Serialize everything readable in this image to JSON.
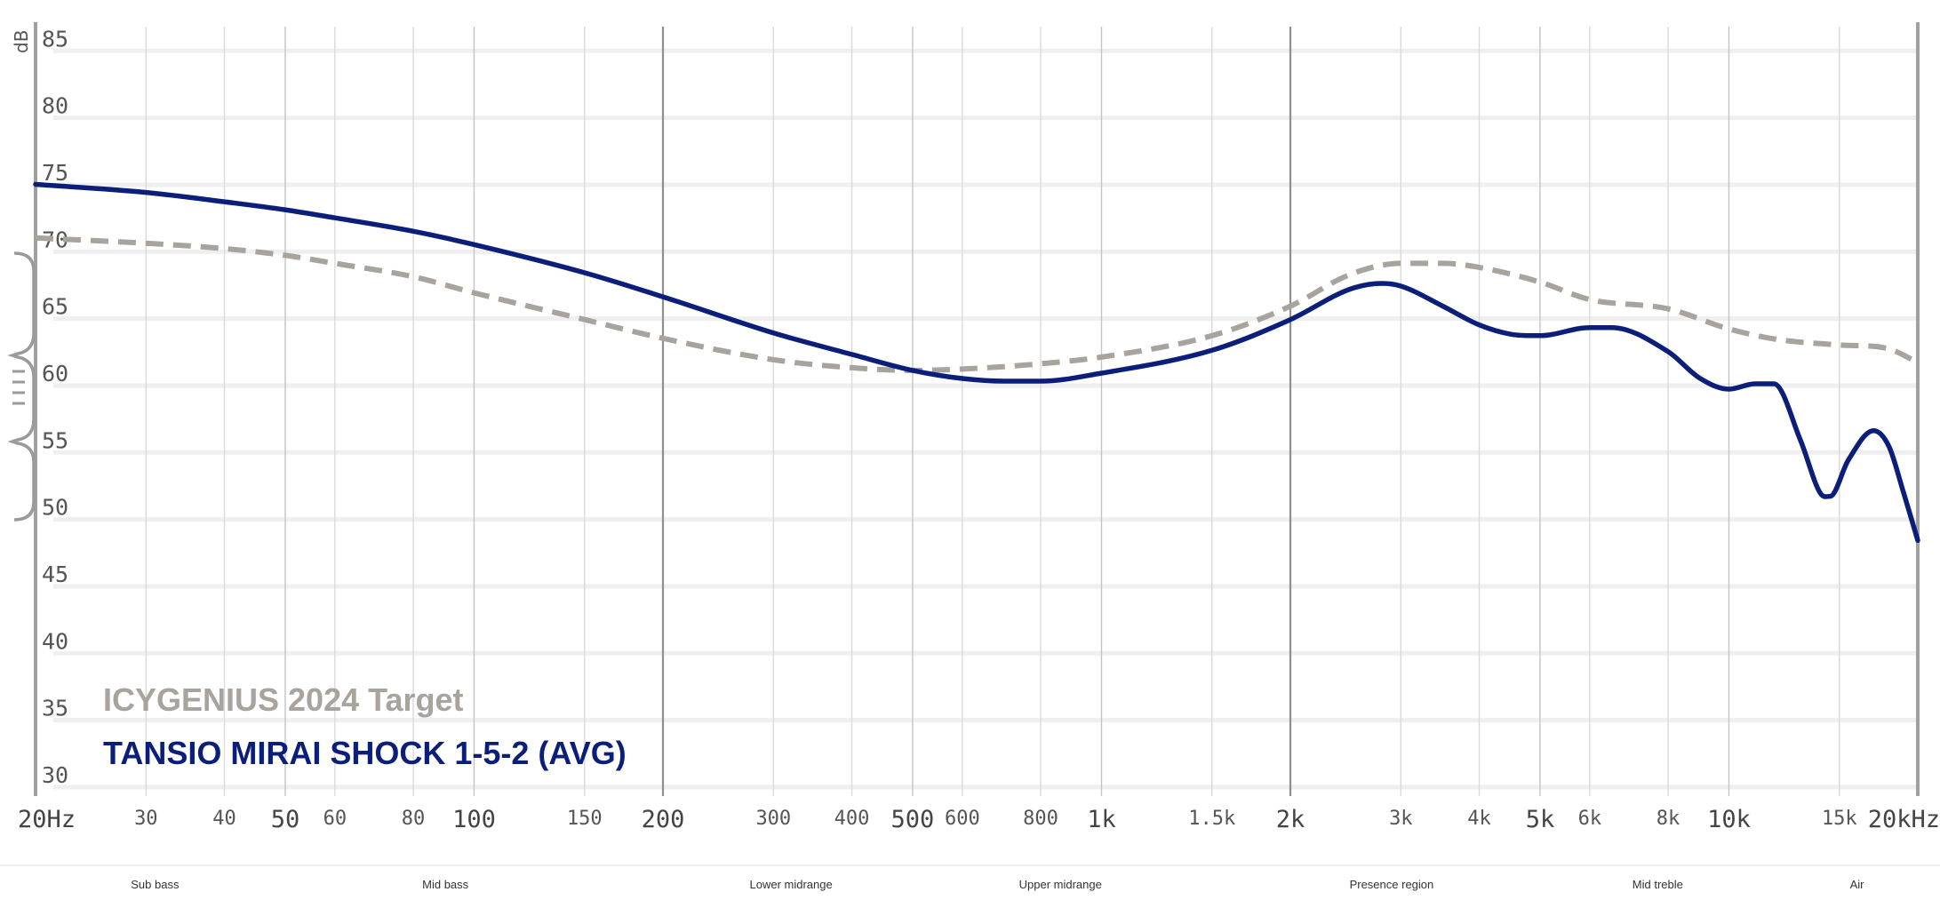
{
  "colors": {
    "phone": "#0b1f7a",
    "target": "#a8a39c",
    "grid_minor": "#dadada",
    "grid_major": "#9a9a9a",
    "axis": "#a0a0a0"
  },
  "chart_data": {
    "type": "line",
    "title": "",
    "ylabel": "dB",
    "xlabel": "",
    "x_scale": "log",
    "xlim": [
      20,
      20000
    ],
    "ylim": [
      28,
      87
    ],
    "grid": true,
    "legend_position": "bottom-left",
    "y_ticks": [
      "85",
      "80",
      "75",
      "70",
      "65",
      "60",
      "55",
      "50",
      "45",
      "40",
      "35",
      "30"
    ],
    "y_tick_values": [
      85,
      80,
      75,
      70,
      65,
      60,
      55,
      50,
      45,
      40,
      35,
      30
    ],
    "x_ticks": [
      {
        "f": 20,
        "label": "20Hz",
        "major": true
      },
      {
        "f": 30,
        "label": "30",
        "major": false
      },
      {
        "f": 40,
        "label": "40",
        "major": false
      },
      {
        "f": 50,
        "label": "50",
        "major": true
      },
      {
        "f": 60,
        "label": "60",
        "major": false
      },
      {
        "f": 80,
        "label": "80",
        "major": false
      },
      {
        "f": 100,
        "label": "100",
        "major": true
      },
      {
        "f": 150,
        "label": "150",
        "major": false
      },
      {
        "f": 200,
        "label": "200",
        "major": true
      },
      {
        "f": 300,
        "label": "300",
        "major": false
      },
      {
        "f": 400,
        "label": "400",
        "major": false
      },
      {
        "f": 500,
        "label": "500",
        "major": true
      },
      {
        "f": 600,
        "label": "600",
        "major": false
      },
      {
        "f": 800,
        "label": "800",
        "major": false
      },
      {
        "f": 1000,
        "label": "1k",
        "major": true
      },
      {
        "f": 1500,
        "label": "1.5k",
        "major": false
      },
      {
        "f": 2000,
        "label": "2k",
        "major": true
      },
      {
        "f": 3000,
        "label": "3k",
        "major": false
      },
      {
        "f": 4000,
        "label": "4k",
        "major": false
      },
      {
        "f": 5000,
        "label": "5k",
        "major": true
      },
      {
        "f": 6000,
        "label": "6k",
        "major": false
      },
      {
        "f": 8000,
        "label": "8k",
        "major": false
      },
      {
        "f": 10000,
        "label": "10k",
        "major": true
      },
      {
        "f": 15000,
        "label": "15k",
        "major": false
      },
      {
        "f": 20000,
        "label": "20kHz",
        "major": true
      }
    ],
    "dark_grid_freqs": [
      200,
      2000,
      20000
    ],
    "regions": [
      {
        "label": "Sub bass",
        "f": 31
      },
      {
        "label": "Mid bass",
        "f": 90
      },
      {
        "label": "Lower midrange",
        "f": 320
      },
      {
        "label": "Upper midrange",
        "f": 860
      },
      {
        "label": "Presence region",
        "f": 2900
      },
      {
        "label": "Mid treble",
        "f": 7700
      },
      {
        "label": "Air",
        "f": 16000
      }
    ],
    "series": [
      {
        "name": "ICYGENIUS 2024 Target",
        "style": "dashed",
        "x": [
          20,
          30,
          40,
          50,
          60,
          80,
          100,
          150,
          200,
          300,
          400,
          500,
          600,
          800,
          1000,
          1500,
          2000,
          2500,
          3000,
          3500,
          4000,
          5000,
          6000,
          8000,
          10000,
          12000,
          15000,
          18000,
          20000
        ],
        "values": [
          70.1,
          69.7,
          69.3,
          68.8,
          68.2,
          67.2,
          66.0,
          64.0,
          62.6,
          61.0,
          60.4,
          60.2,
          60.3,
          60.7,
          61.2,
          62.8,
          65.0,
          67.4,
          68.2,
          68.2,
          67.9,
          66.8,
          65.5,
          64.8,
          63.3,
          62.5,
          62.1,
          61.8,
          60.8
        ]
      },
      {
        "name": "TANSIO MIRAI SHOCK 1-5-2 (AVG)",
        "style": "solid",
        "x": [
          20,
          30,
          40,
          50,
          60,
          80,
          100,
          150,
          200,
          300,
          400,
          500,
          600,
          700,
          800,
          1000,
          1500,
          2000,
          2500,
          2800,
          3000,
          3500,
          4000,
          4500,
          5000,
          6000,
          6500,
          8000,
          9000,
          10000,
          11000,
          11800,
          13000,
          14000,
          14500,
          15500,
          17000,
          18000,
          19000,
          20000
        ],
        "values": [
          74.1,
          73.5,
          72.8,
          72.2,
          71.6,
          70.6,
          69.6,
          67.5,
          65.7,
          63.0,
          61.4,
          60.2,
          59.6,
          59.4,
          59.4,
          60.0,
          61.7,
          64.0,
          66.3,
          66.7,
          66.5,
          65.0,
          63.6,
          62.9,
          62.8,
          63.4,
          63.4,
          61.6,
          59.6,
          58.8,
          59.2,
          59.2,
          55.0,
          51.0,
          50.8,
          53.5,
          55.7,
          54.5,
          51.0,
          47.5
        ]
      }
    ]
  }
}
